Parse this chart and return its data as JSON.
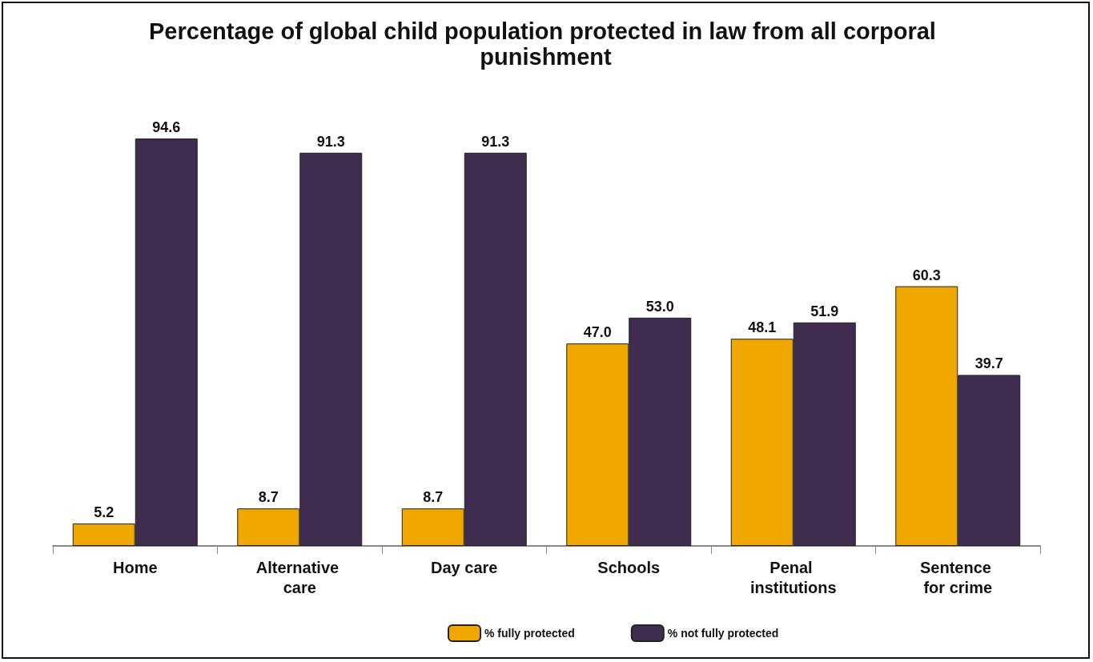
{
  "chart_data": {
    "type": "bar",
    "title": "Percentage of global child population protected in law from all corporal punishment",
    "categories": [
      "Home",
      "Alternative care",
      "Day care",
      "Schools",
      "Penal institutions",
      "Sentence for crime"
    ],
    "series": [
      {
        "name": "% fully protected",
        "color": "#f0a800",
        "values": [
          5.2,
          8.7,
          8.7,
          47.0,
          48.1,
          60.3
        ],
        "value_labels": [
          "5.2",
          "8.7",
          "8.7",
          "47.0",
          "48.1",
          "60.3"
        ]
      },
      {
        "name": "% not fully protected",
        "color": "#3f2c4e",
        "values": [
          94.6,
          91.3,
          91.3,
          53.0,
          51.9,
          39.7
        ],
        "value_labels": [
          "94.6",
          "91.3",
          "91.3",
          "53.0",
          "51.9",
          "39.7"
        ]
      }
    ],
    "legend": "bottom"
  }
}
